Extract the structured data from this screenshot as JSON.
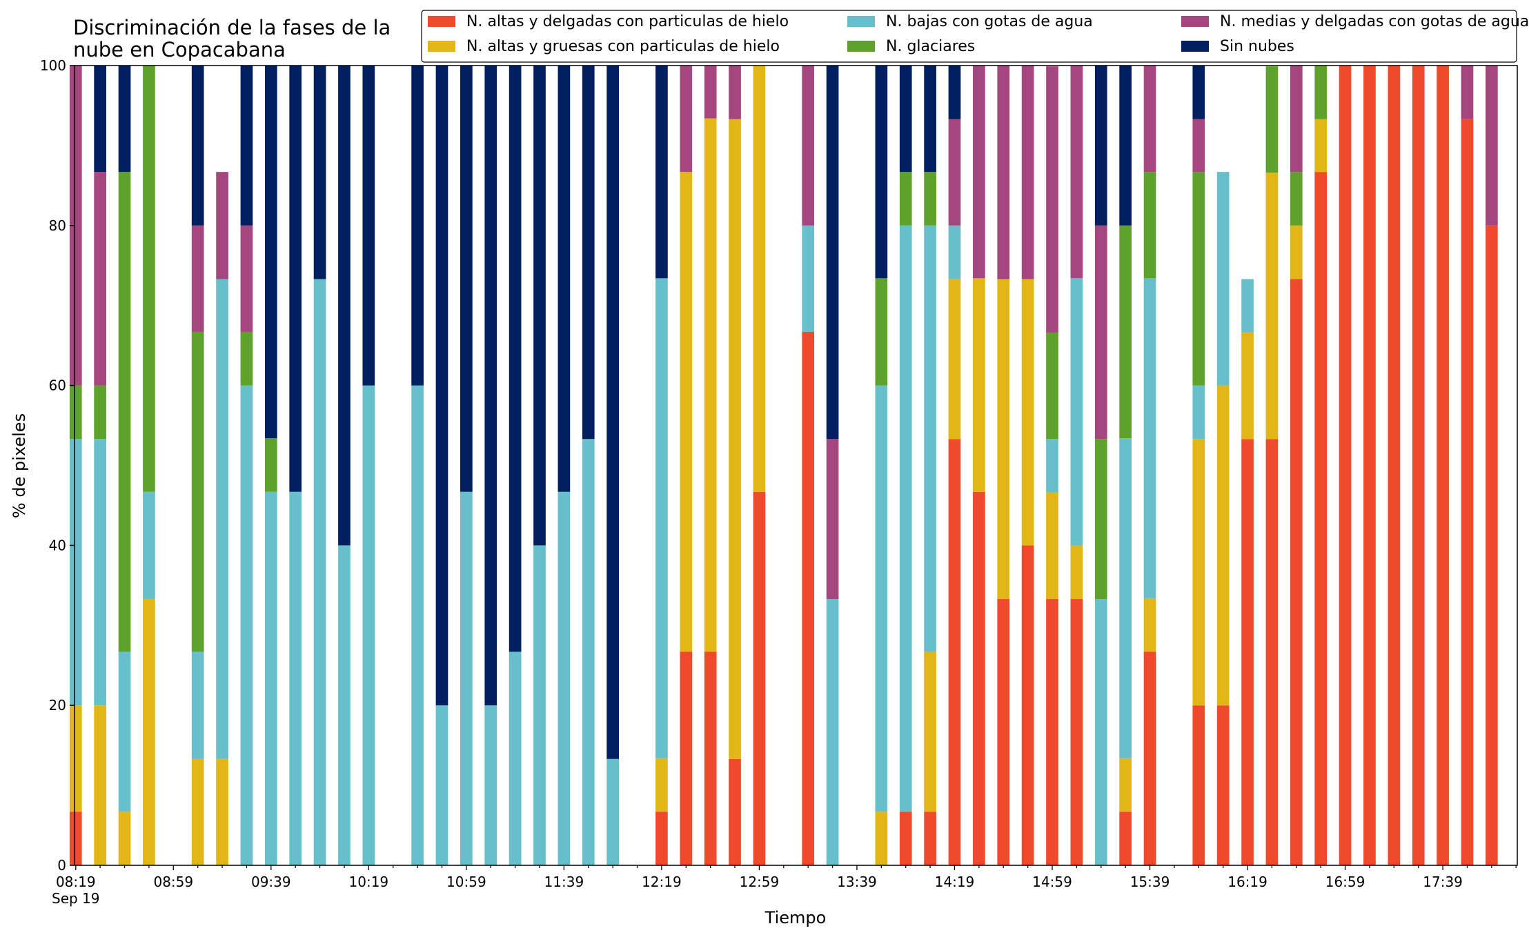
{
  "chart_data": {
    "type": "bar",
    "stacked": true,
    "title": [
      "Discriminación de la fases de la",
      "nube en Copacabana"
    ],
    "xlabel": "Tiempo",
    "ylabel": "% de pixeles",
    "ylim": [
      0,
      100
    ],
    "yticks": [
      0,
      20,
      40,
      60,
      80,
      100
    ],
    "grid": false,
    "legend_position": "top-right",
    "time_range": [
      "08:19",
      "18:09"
    ],
    "bar_interval_minutes": 10,
    "bar_width_minutes": 5,
    "x_tick_labels": [
      "08:19",
      "08:59",
      "09:39",
      "10:19",
      "10:59",
      "11:39",
      "12:19",
      "12:59",
      "13:39",
      "14:19",
      "14:59",
      "15:39",
      "16:19",
      "16:59",
      "17:39"
    ],
    "x_tick_sublabel": "Sep 19",
    "times": [
      "08:19",
      "08:29",
      "08:39",
      "08:49",
      "08:59",
      "09:09",
      "09:19",
      "09:29",
      "09:39",
      "09:49",
      "09:59",
      "10:09",
      "10:19",
      "10:29",
      "10:39",
      "10:49",
      "10:59",
      "11:09",
      "11:19",
      "11:29",
      "11:39",
      "11:49",
      "11:59",
      "12:09",
      "12:19",
      "12:29",
      "12:39",
      "12:49",
      "12:59",
      "13:09",
      "13:19",
      "13:29",
      "13:39",
      "13:49",
      "13:59",
      "14:09",
      "14:19",
      "14:29",
      "14:39",
      "14:49",
      "14:59",
      "15:09",
      "15:19",
      "15:29",
      "15:39",
      "15:49",
      "15:59",
      "16:09",
      "16:19",
      "16:29",
      "16:39",
      "16:49",
      "16:59",
      "17:09",
      "17:19",
      "17:29",
      "17:39",
      "17:49",
      "17:59"
    ],
    "series": [
      {
        "name": "N. altas y delgadas con particulas de hielo",
        "color": "#ee4a2b",
        "values": [
          6.7,
          0,
          0,
          0,
          null,
          0,
          0,
          0,
          0,
          0,
          0,
          0,
          0,
          null,
          0,
          0,
          0,
          0,
          0,
          0,
          0,
          0,
          0,
          null,
          6.7,
          26.7,
          26.7,
          13.3,
          46.7,
          null,
          66.7,
          0,
          null,
          0,
          6.7,
          6.7,
          53.3,
          46.7,
          33.3,
          40,
          33.3,
          33.3,
          0,
          6.7,
          26.7,
          null,
          20,
          20,
          53.3,
          53.3,
          73.3,
          86.7,
          100,
          100,
          100,
          100,
          100,
          93.3,
          80
        ]
      },
      {
        "name": "N. altas y gruesas con particulas de hielo",
        "color": "#e3b617",
        "values": [
          13.3,
          20,
          6.7,
          33.3,
          null,
          13.3,
          13.3,
          0,
          0,
          0,
          0,
          0,
          0,
          null,
          0,
          0,
          0,
          0,
          0,
          0,
          0,
          0,
          0,
          null,
          6.7,
          60,
          66.7,
          80,
          53.3,
          null,
          0,
          0,
          null,
          6.7,
          0,
          20,
          20,
          26.7,
          40,
          33.3,
          13.3,
          6.7,
          0,
          6.7,
          6.7,
          null,
          33.3,
          40,
          13.3,
          33.3,
          6.7,
          6.6,
          0,
          0,
          0,
          0,
          0,
          0,
          0
        ]
      },
      {
        "name": "N. bajas con gotas de agua",
        "color": "#67bfcb",
        "values": [
          33.3,
          33.3,
          20,
          13.4,
          null,
          13.4,
          60,
          60,
          46.7,
          46.7,
          73.3,
          40,
          60,
          null,
          60,
          20,
          46.7,
          20,
          26.7,
          40,
          46.7,
          53.3,
          13.3,
          null,
          60,
          0,
          0,
          0,
          0,
          null,
          13.3,
          33.3,
          null,
          53.3,
          73.3,
          53.3,
          6.7,
          0,
          0,
          0,
          6.7,
          33.4,
          33.3,
          40,
          40,
          null,
          6.7,
          26.7,
          6.7,
          0,
          0,
          0,
          0,
          0,
          0,
          0,
          0,
          0,
          0
        ]
      },
      {
        "name": "N. glaciares",
        "color": "#5ea22c",
        "values": [
          6.7,
          6.7,
          60,
          53.4,
          null,
          40,
          0,
          6.7,
          6.7,
          0,
          0,
          0,
          0,
          null,
          0,
          0,
          0,
          0,
          0,
          0,
          0,
          0,
          0,
          null,
          0,
          0,
          0,
          0,
          0,
          null,
          0,
          0,
          null,
          13.4,
          6.7,
          6.7,
          0,
          0,
          0,
          0,
          13.3,
          0,
          20.0,
          26.6,
          13.3,
          null,
          26.7,
          0,
          0,
          13.3,
          6.7,
          6.7,
          0,
          0,
          0,
          0,
          0,
          0,
          0
        ]
      },
      {
        "name": "N. medias y delgadas con gotas de agua",
        "color": "#a6467f",
        "values": [
          40,
          26.7,
          0,
          0,
          null,
          13.3,
          13.4,
          13.3,
          0,
          0,
          0,
          0,
          0,
          null,
          0,
          0,
          0,
          0,
          0,
          0,
          0,
          0,
          0,
          null,
          0,
          13.3,
          6.6,
          6.7,
          0,
          null,
          20,
          20.0,
          null,
          0,
          0,
          0,
          13.3,
          26.6,
          26.7,
          26.7,
          33.3,
          26.7,
          26.7,
          0,
          13.3,
          null,
          6.6,
          0,
          0,
          0,
          13.3,
          0,
          0,
          0,
          0,
          0,
          0,
          6.7,
          20
        ]
      },
      {
        "name": "Sin nubes",
        "color": "#02205f",
        "values": [
          0,
          13.3,
          13.3,
          0,
          null,
          20,
          0,
          20,
          46.6,
          53.3,
          26.7,
          60,
          40,
          null,
          40,
          80,
          53.3,
          80,
          73.3,
          60,
          53.3,
          46.7,
          86.7,
          null,
          26.7,
          0,
          0,
          0,
          0,
          null,
          0,
          46.7,
          null,
          26.6,
          13.3,
          13.3,
          6.7,
          0,
          0,
          0,
          0,
          0,
          20,
          20,
          6.7,
          null,
          6.7,
          0,
          0,
          0,
          0,
          0,
          0,
          0,
          0,
          0,
          0,
          0,
          0
        ]
      }
    ]
  }
}
